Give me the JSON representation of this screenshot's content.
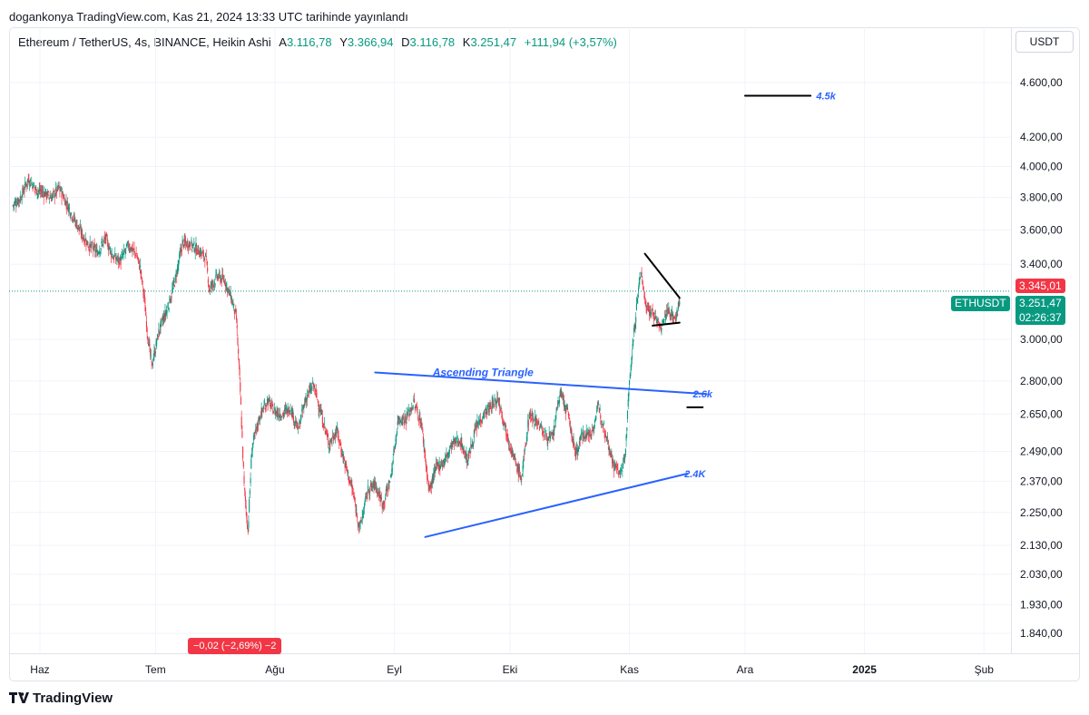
{
  "header": {
    "published": "dogankonya TradingView.com, Kas 21, 2024 13:33 UTC tarihinde yayınlandı"
  },
  "legend": {
    "symbol": "Ethereum / TetherUS, 4s, BINANCE, Heikin Ashi",
    "open_label": "A",
    "open": "3.116,78",
    "high_label": "Y",
    "high": "3.366,94",
    "low_label": "D",
    "low": "3.116,78",
    "close_label": "K",
    "close": "3.251,47",
    "change": "+111,94 (+3,57%)"
  },
  "currency_button": "USDT",
  "price_tags": {
    "red_price": "3.345,01",
    "ticker": "ETHUSDT",
    "last_price": "3.251,47",
    "countdown": "02:26:37"
  },
  "change_badge": "−0,02 (−2,69%) −2",
  "footer": {
    "brand": "TradingView"
  },
  "chart_data": {
    "type": "candlestick",
    "style": "Heikin Ashi",
    "y_scale": "log",
    "ylim": [
      1780,
      4820
    ],
    "y_ticks": [
      {
        "value": 4600,
        "label": "4.600,00"
      },
      {
        "value": 4200,
        "label": "4.200,00"
      },
      {
        "value": 4000,
        "label": "4.000,00"
      },
      {
        "value": 3800,
        "label": "3.800,00"
      },
      {
        "value": 3600,
        "label": "3.600,00"
      },
      {
        "value": 3400,
        "label": "3.400,00"
      },
      {
        "value": 3000,
        "label": "3.000,00"
      },
      {
        "value": 2800,
        "label": "2.800,00"
      },
      {
        "value": 2650,
        "label": "2.650,00"
      },
      {
        "value": 2490,
        "label": "2.490,00"
      },
      {
        "value": 2370,
        "label": "2.370,00"
      },
      {
        "value": 2250,
        "label": "2.250,00"
      },
      {
        "value": 2130,
        "label": "2.130,00"
      },
      {
        "value": 2030,
        "label": "2.030,00"
      },
      {
        "value": 1930,
        "label": "1.930,00"
      },
      {
        "value": 1840,
        "label": "1.840,00"
      }
    ],
    "x_ticks": [
      {
        "day": 0,
        "label": "Haz",
        "bold": false
      },
      {
        "day": 30,
        "label": "Tem",
        "bold": false
      },
      {
        "day": 61,
        "label": "Ağu",
        "bold": false
      },
      {
        "day": 92,
        "label": "Eyl",
        "bold": false
      },
      {
        "day": 122,
        "label": "Eki",
        "bold": false
      },
      {
        "day": 153,
        "label": "Kas",
        "bold": false
      },
      {
        "day": 183,
        "label": "Ara",
        "bold": false
      },
      {
        "day": 214,
        "label": "2025",
        "bold": true
      },
      {
        "day": 245,
        "label": "Şub",
        "bold": false
      }
    ],
    "x_domain_days": [
      -8,
      252
    ],
    "series_anchors": [
      [
        -7,
        3750
      ],
      [
        -5,
        3800
      ],
      [
        -3,
        3920
      ],
      [
        -1,
        3850
      ],
      [
        1,
        3830
      ],
      [
        3,
        3800
      ],
      [
        5,
        3860
      ],
      [
        7,
        3760
      ],
      [
        9,
        3660
      ],
      [
        11,
        3570
      ],
      [
        13,
        3500
      ],
      [
        15,
        3470
      ],
      [
        17,
        3550
      ],
      [
        19,
        3440
      ],
      [
        21,
        3420
      ],
      [
        23,
        3510
      ],
      [
        25,
        3460
      ],
      [
        26,
        3380
      ],
      [
        27,
        3230
      ],
      [
        28,
        3020
      ],
      [
        29,
        2870
      ],
      [
        31,
        3050
      ],
      [
        33,
        3150
      ],
      [
        35,
        3300
      ],
      [
        37,
        3520
      ],
      [
        39,
        3520
      ],
      [
        41,
        3480
      ],
      [
        43,
        3440
      ],
      [
        44,
        3260
      ],
      [
        46,
        3330
      ],
      [
        48,
        3310
      ],
      [
        50,
        3190
      ],
      [
        51,
        3100
      ],
      [
        52,
        2750
      ],
      [
        53,
        2350
      ],
      [
        54,
        2180
      ],
      [
        55,
        2500
      ],
      [
        57,
        2640
      ],
      [
        59,
        2710
      ],
      [
        61,
        2660
      ],
      [
        63,
        2650
      ],
      [
        65,
        2680
      ],
      [
        67,
        2580
      ],
      [
        69,
        2720
      ],
      [
        71,
        2780
      ],
      [
        73,
        2650
      ],
      [
        75,
        2520
      ],
      [
        77,
        2580
      ],
      [
        79,
        2450
      ],
      [
        81,
        2340
      ],
      [
        83,
        2190
      ],
      [
        85,
        2330
      ],
      [
        87,
        2360
      ],
      [
        89,
        2280
      ],
      [
        91,
        2380
      ],
      [
        93,
        2630
      ],
      [
        95,
        2630
      ],
      [
        97,
        2700
      ],
      [
        99,
        2610
      ],
      [
        101,
        2330
      ],
      [
        103,
        2430
      ],
      [
        105,
        2450
      ],
      [
        107,
        2520
      ],
      [
        109,
        2540
      ],
      [
        111,
        2450
      ],
      [
        113,
        2580
      ],
      [
        115,
        2650
      ],
      [
        117,
        2680
      ],
      [
        119,
        2720
      ],
      [
        121,
        2580
      ],
      [
        123,
        2460
      ],
      [
        125,
        2380
      ],
      [
        127,
        2650
      ],
      [
        129,
        2620
      ],
      [
        131,
        2560
      ],
      [
        133,
        2540
      ],
      [
        135,
        2750
      ],
      [
        137,
        2650
      ],
      [
        139,
        2480
      ],
      [
        141,
        2570
      ],
      [
        143,
        2560
      ],
      [
        145,
        2680
      ],
      [
        147,
        2560
      ],
      [
        149,
        2430
      ],
      [
        151,
        2400
      ],
      [
        152,
        2500
      ],
      [
        153,
        2800
      ],
      [
        154,
        3000
      ],
      [
        155,
        3200
      ],
      [
        156,
        3370
      ],
      [
        157,
        3200
      ],
      [
        158,
        3150
      ],
      [
        159,
        3140
      ],
      [
        160,
        3100
      ],
      [
        161,
        3050
      ],
      [
        162,
        3100
      ],
      [
        163,
        3150
      ],
      [
        164,
        3130
      ],
      [
        165,
        3100
      ],
      [
        166,
        3200
      ]
    ],
    "last_price": 3251.47,
    "red_price_line": 3345.01,
    "annotations": [
      {
        "type": "text",
        "text": "Ascending Triangle",
        "day": 115,
        "price": 2840
      },
      {
        "type": "text",
        "text": "2.6k",
        "day": 172,
        "price": 2740
      },
      {
        "type": "text",
        "text": "2.4K",
        "day": 170,
        "price": 2400
      },
      {
        "type": "text",
        "text": "4.5k",
        "day": 204,
        "price": 4500
      },
      {
        "type": "line",
        "from": {
          "day": 87,
          "price": 2840
        },
        "to": {
          "day": 173,
          "price": 2740
        },
        "color": "#2962ff"
      },
      {
        "type": "line",
        "from": {
          "day": 100,
          "price": 2160
        },
        "to": {
          "day": 168,
          "price": 2400
        },
        "color": "#2962ff"
      },
      {
        "type": "line",
        "from": {
          "day": 157,
          "price": 3460
        },
        "to": {
          "day": 166,
          "price": 3215
        },
        "color": "#000000"
      },
      {
        "type": "line",
        "from": {
          "day": 159,
          "price": 3070
        },
        "to": {
          "day": 166,
          "price": 3085
        },
        "color": "#000000"
      },
      {
        "type": "line",
        "from": {
          "day": 183,
          "price": 4500
        },
        "to": {
          "day": 200,
          "price": 4500
        },
        "color": "#000000"
      },
      {
        "type": "line",
        "from": {
          "day": 168,
          "price": 2680
        },
        "to": {
          "day": 172,
          "price": 2680
        },
        "color": "#000000"
      }
    ]
  }
}
